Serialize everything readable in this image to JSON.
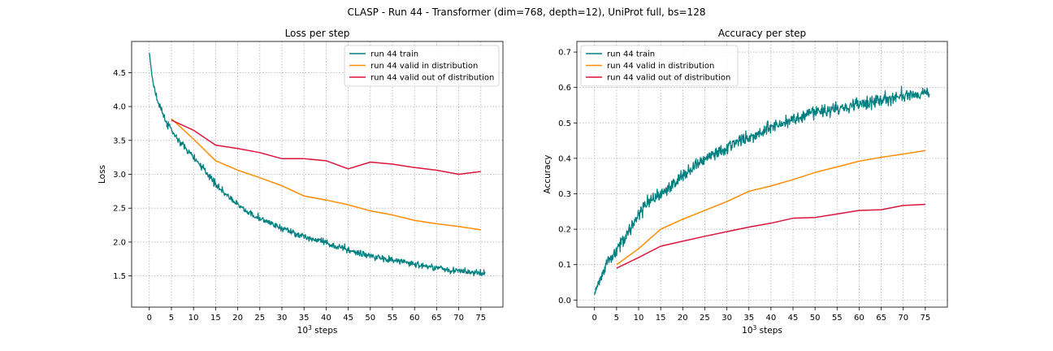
{
  "figure": {
    "suptitle": "CLASP - Run 44 - Transformer (dim=768, depth=12), UniProt full, bs=128"
  },
  "chart_data": [
    {
      "type": "line",
      "title": "Loss per step",
      "xlabel_base": "10",
      "xlabel_exp": "3",
      "xlabel_rest": " steps",
      "ylabel": "Loss",
      "xlim": [
        -4,
        80
      ],
      "ylim": [
        1.04,
        4.96
      ],
      "xticks": [
        0,
        5,
        10,
        15,
        20,
        25,
        30,
        35,
        40,
        45,
        50,
        55,
        60,
        65,
        70,
        75
      ],
      "xtick_labels": [
        "0",
        "5",
        "10",
        "15",
        "20",
        "25",
        "30",
        "35",
        "40",
        "45",
        "50",
        "55",
        "60",
        "65",
        "70",
        "75"
      ],
      "yticks": [
        1.5,
        2.0,
        2.5,
        3.0,
        3.5,
        4.0,
        4.5
      ],
      "ytick_labels": [
        "1.5",
        "2.0",
        "2.5",
        "3.0",
        "3.5",
        "4.0",
        "4.5"
      ],
      "grid": true,
      "legend_position": "top-right",
      "series": [
        {
          "name": "run 44 train",
          "color": "#008080",
          "noisy": true,
          "x": [
            0,
            0.5,
            1,
            2,
            3,
            4,
            5,
            6,
            8,
            10,
            12,
            14,
            15,
            17,
            20,
            22,
            25,
            28,
            30,
            33,
            35,
            38,
            40,
            43,
            45,
            48,
            50,
            53,
            55,
            58,
            60,
            63,
            65,
            68,
            70,
            73,
            76
          ],
          "y": [
            4.8,
            4.5,
            4.3,
            4.05,
            3.9,
            3.75,
            3.65,
            3.55,
            3.4,
            3.25,
            3.1,
            2.95,
            2.85,
            2.72,
            2.55,
            2.45,
            2.35,
            2.25,
            2.2,
            2.13,
            2.08,
            2.03,
            1.98,
            1.93,
            1.88,
            1.83,
            1.8,
            1.76,
            1.73,
            1.7,
            1.67,
            1.64,
            1.62,
            1.59,
            1.57,
            1.55,
            1.53
          ],
          "noise": 0.1
        },
        {
          "name": "run 44 valid in distribution",
          "color": "#ff8c00",
          "x": [
            5,
            10,
            15,
            20,
            25,
            30,
            35,
            40,
            45,
            50,
            55,
            60,
            65,
            70,
            75
          ],
          "y": [
            3.82,
            3.52,
            3.2,
            3.06,
            2.95,
            2.83,
            2.68,
            2.62,
            2.55,
            2.46,
            2.4,
            2.32,
            2.27,
            2.23,
            2.18
          ]
        },
        {
          "name": "run 44 valid out of distribution",
          "color": "#dc143c",
          "x": [
            5,
            10,
            15,
            20,
            25,
            30,
            35,
            40,
            45,
            50,
            55,
            60,
            65,
            70,
            75
          ],
          "y": [
            3.8,
            3.65,
            3.43,
            3.38,
            3.32,
            3.23,
            3.23,
            3.2,
            3.08,
            3.18,
            3.15,
            3.1,
            3.06,
            3.0,
            3.04
          ]
        }
      ]
    },
    {
      "type": "line",
      "title": "Accuracy per step",
      "xlabel_base": "10",
      "xlabel_exp": "3",
      "xlabel_rest": " steps",
      "ylabel": "Accuracy",
      "xlim": [
        -4,
        80
      ],
      "ylim": [
        -0.02,
        0.73
      ],
      "xticks": [
        0,
        5,
        10,
        15,
        20,
        25,
        30,
        35,
        40,
        45,
        50,
        55,
        60,
        65,
        70,
        75
      ],
      "xtick_labels": [
        "0",
        "5",
        "10",
        "15",
        "20",
        "25",
        "30",
        "35",
        "40",
        "45",
        "50",
        "55",
        "60",
        "65",
        "70",
        "75"
      ],
      "yticks": [
        0.0,
        0.1,
        0.2,
        0.3,
        0.4,
        0.5,
        0.6,
        0.7
      ],
      "ytick_labels": [
        "0.0",
        "0.1",
        "0.2",
        "0.3",
        "0.4",
        "0.5",
        "0.6",
        "0.7"
      ],
      "grid": true,
      "legend_position": "top-left",
      "series": [
        {
          "name": "run 44 train",
          "color": "#008080",
          "noisy": true,
          "x": [
            0,
            1,
            2,
            3,
            5,
            7,
            10,
            12,
            15,
            18,
            20,
            23,
            25,
            28,
            30,
            33,
            35,
            38,
            40,
            43,
            45,
            48,
            50,
            53,
            55,
            58,
            60,
            63,
            65,
            68,
            70,
            73,
            76
          ],
          "y": [
            0.02,
            0.05,
            0.08,
            0.11,
            0.14,
            0.18,
            0.24,
            0.27,
            0.3,
            0.33,
            0.35,
            0.38,
            0.4,
            0.42,
            0.43,
            0.45,
            0.46,
            0.475,
            0.49,
            0.5,
            0.51,
            0.52,
            0.53,
            0.535,
            0.54,
            0.55,
            0.555,
            0.56,
            0.565,
            0.57,
            0.575,
            0.58,
            0.585
          ],
          "noise": 0.04
        },
        {
          "name": "run 44 valid in distribution",
          "color": "#ff8c00",
          "x": [
            5,
            10,
            15,
            20,
            25,
            30,
            35,
            40,
            45,
            50,
            55,
            60,
            65,
            70,
            75
          ],
          "y": [
            0.1,
            0.145,
            0.2,
            0.228,
            0.253,
            0.278,
            0.307,
            0.322,
            0.34,
            0.36,
            0.376,
            0.392,
            0.403,
            0.412,
            0.422
          ]
        },
        {
          "name": "run 44 valid out of distribution",
          "color": "#dc143c",
          "x": [
            5,
            10,
            15,
            20,
            25,
            30,
            35,
            40,
            45,
            50,
            55,
            60,
            65,
            70,
            75
          ],
          "y": [
            0.09,
            0.12,
            0.152,
            0.166,
            0.18,
            0.193,
            0.206,
            0.217,
            0.231,
            0.233,
            0.243,
            0.253,
            0.255,
            0.267,
            0.27
          ]
        }
      ]
    }
  ]
}
